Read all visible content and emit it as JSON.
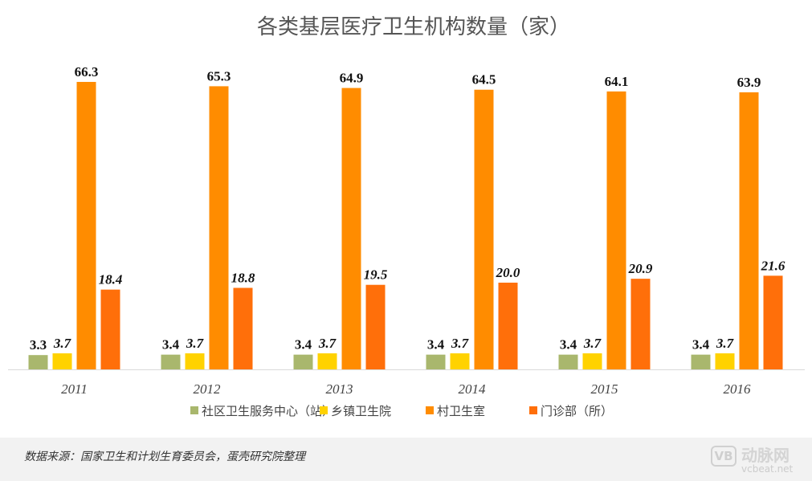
{
  "chart_data": {
    "type": "bar",
    "title": "各类基层医疗卫生机构数量（家）",
    "categories": [
      "2011",
      "2012",
      "2013",
      "2014",
      "2015",
      "2016"
    ],
    "series": [
      {
        "name": "社区卫生服务中心（站）",
        "color": "#a9b76d",
        "italic_labels": false,
        "values": [
          3.3,
          3.4,
          3.4,
          3.4,
          3.4,
          3.4
        ],
        "labels": [
          "3.3",
          "3.4",
          "3.4",
          "3.4",
          "3.4",
          "3.4"
        ]
      },
      {
        "name": "乡镇卫生院",
        "color": "#ffd200",
        "italic_labels": true,
        "values": [
          3.7,
          3.7,
          3.7,
          3.7,
          3.7,
          3.7
        ],
        "labels": [
          "3.7",
          "3.7",
          "3.7",
          "3.7",
          "3.7",
          "3.7"
        ]
      },
      {
        "name": "村卫生室",
        "color": "#ff8c00",
        "italic_labels": false,
        "values": [
          66.3,
          65.3,
          64.9,
          64.5,
          64.1,
          63.9
        ],
        "labels": [
          "66.3",
          "65.3",
          "64.9",
          "64.5",
          "64.1",
          "63.9"
        ]
      },
      {
        "name": "门诊部（所）",
        "color": "#ff6f0a",
        "italic_labels": true,
        "values": [
          18.4,
          18.8,
          19.5,
          20.0,
          20.9,
          21.6
        ],
        "labels": [
          "18.4",
          "18.8",
          "19.5",
          "20.0",
          "20.9",
          "21.6"
        ]
      }
    ],
    "ylim": [
      0,
      66.3
    ],
    "grid": false,
    "legend_position": "bottom"
  },
  "footer": {
    "source": "数据来源：国家卫生和计划生育委员会，蛋壳研究院整理"
  },
  "logo": {
    "mark": "VB",
    "name": "动脉网",
    "site": "vcbeat.net"
  }
}
